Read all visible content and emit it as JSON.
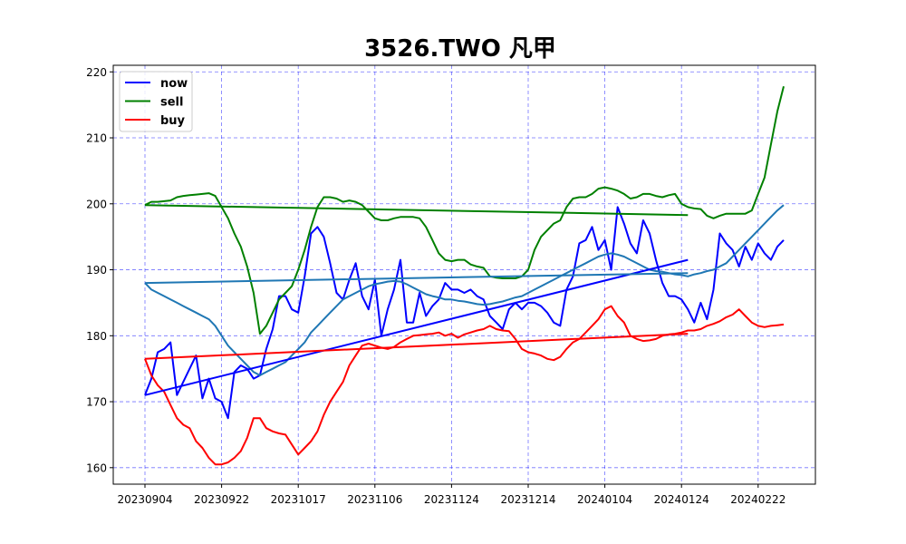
{
  "chart_data": {
    "type": "line",
    "title": "3526.TWO 凡甲",
    "xlabel": "",
    "ylabel": "",
    "x_range": [
      0,
      100
    ],
    "ylim": [
      157.5,
      221
    ],
    "grid": true,
    "legend_position": "top-left",
    "x_ticks": [
      {
        "x": 0,
        "label": "20230904"
      },
      {
        "x": 12,
        "label": "20230922"
      },
      {
        "x": 24,
        "label": "20231017"
      },
      {
        "x": 36,
        "label": "20231106"
      },
      {
        "x": 48,
        "label": "20231124"
      },
      {
        "x": 60,
        "label": "20231214"
      },
      {
        "x": 72,
        "label": "20240104"
      },
      {
        "x": 84,
        "label": "20240124"
      },
      {
        "x": 96,
        "label": "20240222"
      }
    ],
    "y_ticks": [
      160,
      170,
      180,
      190,
      200,
      210,
      220
    ],
    "series": [
      {
        "name": "now",
        "color": "#0000ff",
        "legend": true,
        "x": [
          0,
          1,
          2,
          3,
          4,
          5,
          6,
          7,
          8,
          9,
          10,
          11,
          12,
          13,
          14,
          15,
          16,
          17,
          18,
          19,
          20,
          21,
          22,
          23,
          24,
          25,
          26,
          27,
          28,
          29,
          30,
          31,
          32,
          33,
          34,
          35,
          36,
          37,
          38,
          39,
          40,
          41,
          42,
          43,
          44,
          45,
          46,
          47,
          48,
          49,
          50,
          51,
          52,
          53,
          54,
          55,
          56,
          57,
          58,
          59,
          60,
          61,
          62,
          63,
          64,
          65,
          66,
          67,
          68,
          69,
          70,
          71,
          72,
          73,
          74,
          75,
          76,
          77,
          78,
          79,
          80,
          81,
          82,
          83,
          84,
          85,
          86,
          87,
          88,
          89,
          90,
          91,
          92,
          93,
          94,
          95,
          96,
          97,
          98,
          99,
          100
        ],
        "y": [
          171,
          173.5,
          177.5,
          178,
          179,
          171,
          173,
          175,
          177,
          170.5,
          173.5,
          170.5,
          170,
          167.5,
          174.5,
          175.5,
          175,
          173.5,
          174,
          178,
          181,
          186,
          186,
          184,
          183.5,
          189,
          195.5,
          196.5,
          195,
          191,
          186.5,
          185.5,
          188.5,
          191,
          186,
          184,
          188.5,
          180,
          184,
          187,
          191.5,
          182,
          182,
          186.5,
          183,
          184.5,
          185.5,
          188,
          187,
          187,
          186.5,
          187,
          186,
          185.5,
          183,
          182,
          181,
          184,
          185,
          184,
          185,
          185,
          184.5,
          183.5,
          182,
          181.5,
          187,
          189,
          194,
          194.5,
          196.5,
          193,
          194.5,
          190,
          199.5,
          197,
          194,
          192.5,
          197.5,
          195.5,
          191.5,
          188,
          186,
          186,
          185.5,
          184,
          182,
          185,
          182.5,
          187,
          195.5,
          194,
          193,
          190.5,
          193.5,
          191.5,
          194,
          192.5,
          191.5,
          193.5,
          194.5
        ]
      },
      {
        "name": "sell",
        "color": "#008000",
        "legend": true,
        "x": [
          0,
          1,
          2,
          3,
          4,
          5,
          6,
          7,
          8,
          9,
          10,
          11,
          12,
          13,
          14,
          15,
          16,
          17,
          18,
          19,
          20,
          21,
          22,
          23,
          24,
          25,
          26,
          27,
          28,
          29,
          30,
          31,
          32,
          33,
          34,
          35,
          36,
          37,
          38,
          39,
          40,
          41,
          42,
          43,
          44,
          45,
          46,
          47,
          48,
          49,
          50,
          51,
          52,
          53,
          54,
          55,
          56,
          57,
          58,
          59,
          60,
          61,
          62,
          63,
          64,
          65,
          66,
          67,
          68,
          69,
          70,
          71,
          72,
          73,
          74,
          75,
          76,
          77,
          78,
          79,
          80,
          81,
          82,
          83,
          84,
          85,
          86,
          87,
          88,
          89,
          90,
          91,
          92,
          93,
          94,
          95,
          96,
          97,
          98,
          99,
          100
        ],
        "y": [
          199.8,
          200.3,
          200.3,
          200.4,
          200.5,
          201,
          201.2,
          201.3,
          201.4,
          201.5,
          201.6,
          201.2,
          199.5,
          197.8,
          195.5,
          193.5,
          190.5,
          186.5,
          180.3,
          181.5,
          183.5,
          185.5,
          186.5,
          187.5,
          190,
          193,
          196.5,
          199.5,
          201,
          201,
          200.8,
          200.3,
          200.5,
          200.3,
          199.8,
          198.8,
          197.8,
          197.5,
          197.5,
          197.8,
          198,
          198,
          198,
          197.8,
          196.5,
          194.5,
          192.5,
          191.5,
          191.3,
          191.5,
          191.5,
          190.8,
          190.5,
          190.3,
          189,
          188.8,
          188.7,
          188.7,
          188.7,
          189,
          190,
          193,
          195,
          196,
          197,
          197.5,
          199.5,
          200.8,
          201,
          201,
          201.5,
          202.3,
          202.5,
          202.3,
          202,
          201.5,
          200.8,
          201,
          201.5,
          201.5,
          201.2,
          201,
          201.3,
          201.5,
          200,
          199.5,
          199.3,
          199.2,
          198.2,
          197.8,
          198.2,
          198.5,
          198.5,
          198.5,
          198.5,
          199,
          201.5,
          204,
          209,
          214,
          217.8
        ]
      },
      {
        "name": "buy",
        "color": "#ff0000",
        "legend": true,
        "x": [
          0,
          1,
          2,
          3,
          4,
          5,
          6,
          7,
          8,
          9,
          10,
          11,
          12,
          13,
          14,
          15,
          16,
          17,
          18,
          19,
          20,
          21,
          22,
          23,
          24,
          25,
          26,
          27,
          28,
          29,
          30,
          31,
          32,
          33,
          34,
          35,
          36,
          37,
          38,
          39,
          40,
          41,
          42,
          43,
          44,
          45,
          46,
          47,
          48,
          49,
          50,
          51,
          52,
          53,
          54,
          55,
          56,
          57,
          58,
          59,
          60,
          61,
          62,
          63,
          64,
          65,
          66,
          67,
          68,
          69,
          70,
          71,
          72,
          73,
          74,
          75,
          76,
          77,
          78,
          79,
          80,
          81,
          82,
          83,
          84,
          85,
          86,
          87,
          88,
          89,
          90,
          91,
          92,
          93,
          94,
          95,
          96,
          97,
          98,
          99,
          100
        ],
        "y": [
          176.5,
          174,
          172.5,
          171.5,
          169.5,
          167.5,
          166.5,
          166,
          164,
          163,
          161.5,
          160.5,
          160.5,
          160.8,
          161.5,
          162.5,
          164.5,
          167.5,
          167.5,
          166,
          165.5,
          165.2,
          165,
          163.5,
          162,
          163,
          164,
          165.5,
          168,
          170,
          171.5,
          173,
          175.5,
          177,
          178.5,
          178.8,
          178.5,
          178.2,
          178,
          178.3,
          179,
          179.5,
          180,
          180.1,
          180.2,
          180.3,
          180.5,
          180,
          180.3,
          179.7,
          180.2,
          180.5,
          180.8,
          181,
          181.5,
          181,
          180.8,
          180.7,
          179.5,
          178,
          177.5,
          177.3,
          177,
          176.5,
          176.3,
          176.8,
          178,
          179,
          179.5,
          180.5,
          181.5,
          182.5,
          184,
          184.5,
          183,
          182,
          180,
          179.5,
          179.2,
          179.3,
          179.5,
          180,
          180.2,
          180.3,
          180.5,
          180.8,
          180.8,
          181,
          181.5,
          181.8,
          182.2,
          182.8,
          183.2,
          184,
          183,
          182,
          181.5,
          181.3,
          181.5,
          181.6,
          181.7
        ]
      },
      {
        "name": "",
        "color": "#1f77b4",
        "legend": false,
        "x": [
          0,
          1,
          2,
          3,
          4,
          5,
          6,
          7,
          8,
          9,
          10,
          11,
          12,
          13,
          14,
          15,
          16,
          17,
          18,
          19,
          20,
          21,
          22,
          23,
          24,
          25,
          26,
          27,
          28,
          29,
          30,
          31,
          32,
          33,
          34,
          35,
          36,
          37,
          38,
          39,
          40,
          41,
          42,
          43,
          44,
          45,
          46,
          47,
          48,
          49,
          50,
          51,
          52,
          53,
          54,
          55,
          56,
          57,
          58,
          59,
          60,
          61,
          62,
          63,
          64,
          65,
          66,
          67,
          68,
          69,
          70,
          71,
          72,
          73,
          74,
          75,
          76,
          77,
          78,
          79,
          80,
          81,
          82,
          83,
          84,
          85,
          86,
          87,
          88,
          89,
          90,
          91,
          92,
          93,
          94,
          95,
          96,
          97,
          98,
          99,
          100
        ],
        "y": [
          188,
          187,
          186.5,
          186,
          185.5,
          185,
          184.5,
          184,
          183.5,
          183,
          182.5,
          181.5,
          180,
          178.5,
          177.5,
          176.5,
          175.5,
          174.5,
          174,
          174.5,
          175,
          175.5,
          176,
          177,
          178,
          179,
          180.5,
          181.5,
          182.5,
          183.5,
          184.5,
          185.5,
          186,
          186.5,
          187,
          187.5,
          187.8,
          188,
          188.2,
          188.3,
          188.2,
          187.8,
          187.3,
          186.8,
          186.3,
          186,
          185.8,
          185.5,
          185.5,
          185.3,
          185.2,
          185,
          184.8,
          184.7,
          184.8,
          185,
          185.2,
          185.5,
          185.8,
          186,
          186.5,
          187,
          187.5,
          188,
          188.5,
          189,
          189.5,
          190,
          190.5,
          191,
          191.5,
          192,
          192.3,
          192.5,
          192.3,
          192,
          191.5,
          191,
          190.5,
          190,
          189.8,
          189.7,
          189.5,
          189.3,
          189.2,
          189,
          189.3,
          189.5,
          189.8,
          190,
          190.5,
          191,
          192,
          193,
          194,
          195,
          196,
          197,
          198,
          199,
          199.8
        ]
      },
      {
        "name": "",
        "color": "#0000ff",
        "legend": false,
        "x": [
          0,
          85
        ],
        "y": [
          171,
          191.5
        ]
      },
      {
        "name": "",
        "color": "#008000",
        "legend": false,
        "x": [
          0,
          85
        ],
        "y": [
          199.8,
          198.3
        ]
      },
      {
        "name": "",
        "color": "#ff0000",
        "legend": false,
        "x": [
          0,
          85
        ],
        "y": [
          176.5,
          180.3
        ]
      },
      {
        "name": "",
        "color": "#1f77b4",
        "legend": false,
        "x": [
          0,
          85
        ],
        "y": [
          188,
          189.5
        ]
      }
    ]
  }
}
